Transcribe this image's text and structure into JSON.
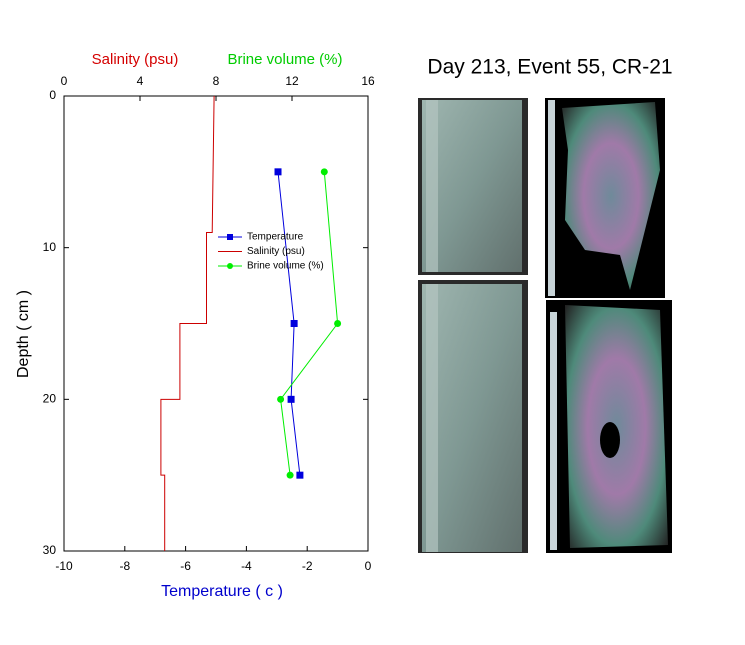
{
  "chart_data": {
    "type": "line",
    "title": "Day 213, Event 55, CR-21",
    "y_label": "Depth ( cm )",
    "x_label": "Temperature ( c )",
    "x2_labels": [
      {
        "text": "Salinity (psu)",
        "color": "#d40000"
      },
      {
        "text": "Brine volume (%)",
        "color": "#00cc00"
      }
    ],
    "ylim": [
      0,
      30
    ],
    "yticks": [
      0,
      10,
      20,
      30
    ],
    "y_reversed": true,
    "xlim": [
      -10,
      0
    ],
    "xticks": [
      -10,
      -8,
      -6,
      -4,
      -2,
      0
    ],
    "x2lim": [
      0,
      16
    ],
    "x2ticks": [
      0,
      4,
      8,
      12,
      16
    ],
    "series": [
      {
        "name": "Temperature",
        "color": "#0000dd",
        "axis": "x",
        "marker": "square",
        "depth": [
          5,
          15,
          20,
          25
        ],
        "values": [
          -2.96,
          -2.43,
          -2.53,
          -2.24
        ]
      },
      {
        "name": "Salinity (psu)",
        "color": "#cc0000",
        "axis": "x2",
        "marker": "none",
        "depth": [
          0,
          9,
          9,
          15,
          15,
          20,
          20,
          25,
          25,
          30
        ],
        "values": [
          7.9,
          7.8,
          7.5,
          7.5,
          6.1,
          6.1,
          5.1,
          5.1,
          5.3,
          5.3
        ]
      },
      {
        "name": "Brine volume (%)",
        "color": "#00ee00",
        "axis": "x2",
        "marker": "circle",
        "depth": [
          5,
          15,
          20,
          25
        ],
        "values": [
          13.7,
          14.4,
          11.4,
          11.9
        ]
      }
    ]
  }
}
